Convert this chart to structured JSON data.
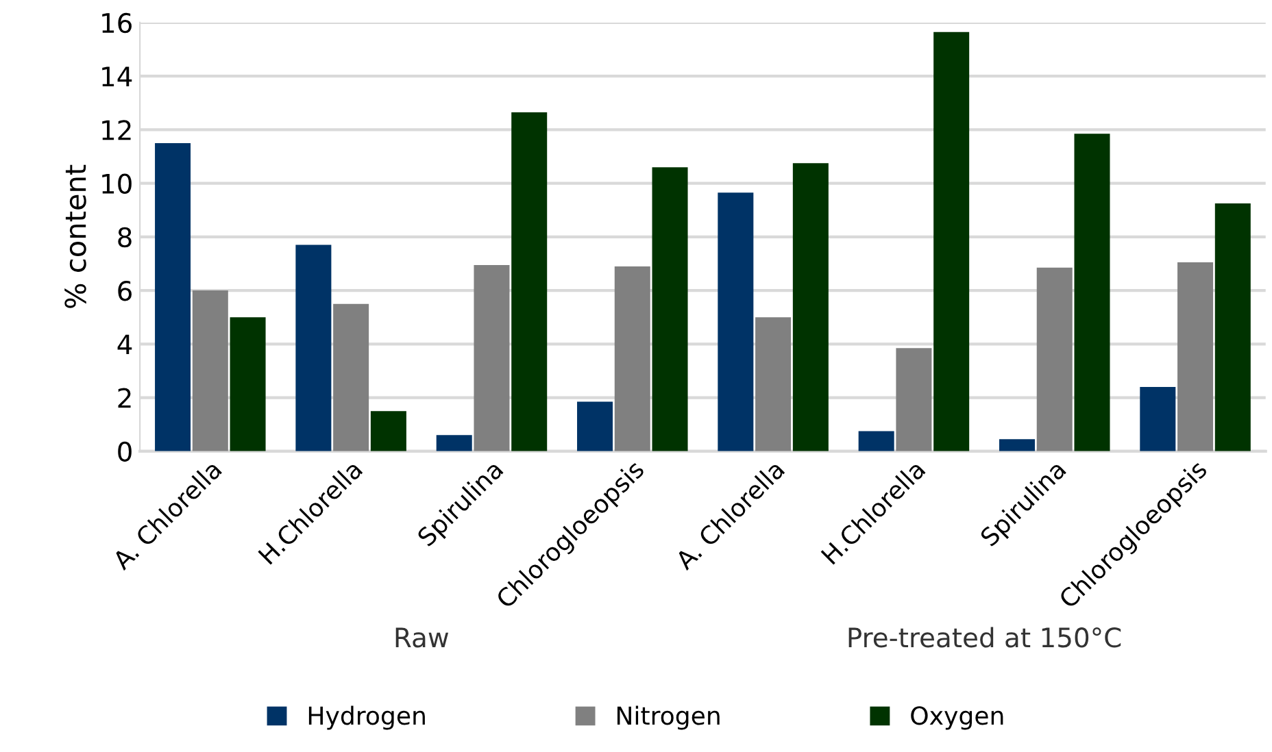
{
  "chart_data": {
    "type": "bar",
    "ylabel": "% content",
    "categories": [
      "A. Chlorella",
      "H.Chlorella",
      "Spirulina",
      "Chlorogloeopsis",
      "A. Chlorella",
      "H.Chlorella",
      "Spirulina",
      "Chlorogloeopsis"
    ],
    "series": [
      {
        "name": "Hydrogen",
        "color": "#003366",
        "values": [
          11.5,
          7.7,
          0.6,
          1.85,
          9.65,
          0.75,
          0.45,
          2.4
        ]
      },
      {
        "name": "Nitrogen",
        "color": "#808080",
        "values": [
          6.0,
          5.5,
          6.95,
          6.9,
          5.0,
          3.85,
          6.85,
          7.05
        ]
      },
      {
        "name": "Oxygen",
        "color": "#003300",
        "values": [
          5.0,
          1.5,
          12.65,
          10.6,
          10.75,
          15.65,
          11.85,
          9.25
        ]
      }
    ],
    "annotations": [
      "Raw",
      "Pre-treated at 150°C"
    ],
    "ylim": [
      0,
      16
    ],
    "yticks": [
      0,
      2,
      4,
      6,
      8,
      10,
      12,
      14,
      16
    ],
    "grid": "y",
    "legend": "bottom"
  }
}
